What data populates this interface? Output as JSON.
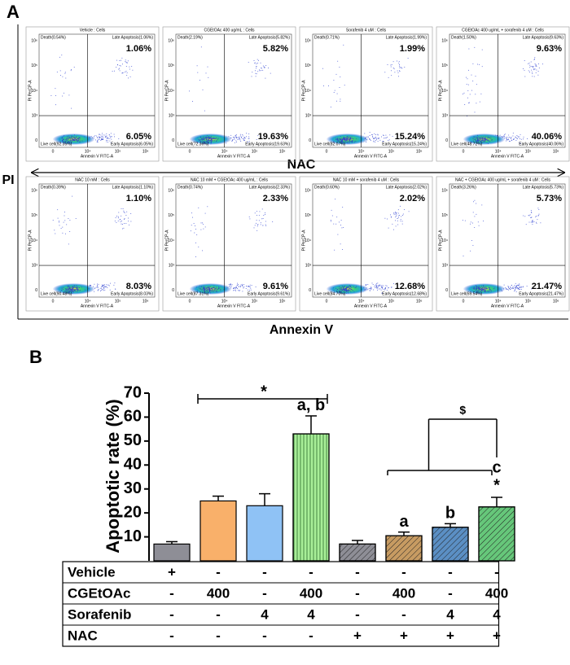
{
  "panel_a": {
    "label": "A",
    "y_axis": "PI",
    "x_axis": "Annexin V",
    "divider": "NAC",
    "plot_x_axis": "Annexin V FITC-A",
    "plot_y_axis": "PI PerCP-A",
    "plot_xticks": [
      "0",
      "10⁴",
      "10⁵",
      "10⁶"
    ],
    "plot_yticks": [
      "0",
      "10³",
      "10⁴",
      "10⁵",
      "10⁶"
    ],
    "plots": [
      {
        "title": "Vehicle : Cells",
        "death": "Death(0.54%)",
        "late": "Late Apoptosis(1.06%)",
        "live": "Live cell(92.35%)",
        "early": "Early Apoptosis(6.05%)",
        "late_value": "1.06%",
        "early_value": "6.05%"
      },
      {
        "title": "CGEtOAc 400 ug/mL : Cells",
        "death": "Death(2.19%)",
        "late": "Late Apoptosis(5.82%)",
        "live": "Live cell(72.36%)",
        "early": "Early Apoptosis(19.63%)",
        "late_value": "5.82%",
        "early_value": "19.63%"
      },
      {
        "title": "Sorafenib 4 uM : Cells",
        "death": "Death(0.71%)",
        "late": "Late Apoptosis(1.99%)",
        "live": "Live cell(82.07%)",
        "early": "Early Apoptosis(15.24%)",
        "late_value": "1.99%",
        "early_value": "15.24%"
      },
      {
        "title": "CGEtOAc 400 ug/mL + sorafenib 4 uM : Cells",
        "death": "Death(1.50%)",
        "late": "Late Apoptosis(9.63%)",
        "live": "Live cell(48.72%)",
        "early": "Early Apoptosis(40.06%)",
        "late_value": "9.63%",
        "early_value": "40.06%"
      },
      {
        "title": "NAC 10 mM : Cells",
        "death": "Death(0.39%)",
        "late": "Late Apoptosis(1.10%)",
        "live": "Live cell(90.48%)",
        "early": "Early Apoptosis(8.03%)",
        "late_value": "1.10%",
        "early_value": "8.03%"
      },
      {
        "title": "NAC 10 mM + CGEtOAc 400 ug/mL : Cells",
        "death": "Death(0.74%)",
        "late": "Late Apoptosis(2.33%)",
        "live": "Live cell(87.31%)",
        "early": "Early Apoptosis(9.61%)",
        "late_value": "2.33%",
        "early_value": "9.61%"
      },
      {
        "title": "NAC 10 mM + sorafenib 4 uM : Cells",
        "death": "Death(0.60%)",
        "late": "Late Apoptosis(2.02%)",
        "live": "Live cell(84.70%)",
        "early": "Early Apoptosis(12.68%)",
        "late_value": "2.02%",
        "early_value": "12.68%"
      },
      {
        "title": "NAC + CGEtOAc 400 ug/mL + sorafenib 4 uM : Cells",
        "death": "Death(3.26%)",
        "late": "Late Apoptosis(5.73%)",
        "live": "Live cell(69.54%)",
        "early": "Early Apoptosis(21.47%)",
        "late_value": "5.73%",
        "early_value": "21.47%"
      }
    ]
  },
  "chart_data": {
    "type": "bar",
    "label": "B",
    "y_label": "Apoptotic rate (%)",
    "values": [
      7,
      25,
      23,
      53,
      7,
      10.5,
      14,
      22.5
    ],
    "errors": [
      1,
      2,
      5,
      7.5,
      1.5,
      1.5,
      1.5,
      4
    ],
    "colors": [
      "#8e8e96",
      "#f9b06a",
      "#8fc2f5",
      "#a8ee98",
      "#8e8e96",
      "#c79b62",
      "#5b8fc4",
      "#66c77a"
    ],
    "patterns": [
      null,
      null,
      null,
      "vertical",
      "diagonal",
      "diagonal",
      "diagonal",
      "diagonal"
    ],
    "ylim": [
      0,
      70
    ],
    "yticks": [
      10,
      20,
      30,
      40,
      50,
      60,
      70
    ],
    "annotations": [
      "*",
      "a, b",
      "$",
      "a",
      "b",
      "c",
      "*"
    ],
    "table": [
      {
        "label": "Vehicle",
        "cells": [
          "+",
          "-",
          "-",
          "-",
          "-",
          "-",
          "-",
          "-"
        ]
      },
      {
        "label": "CGEtOAc",
        "cells": [
          "-",
          "400",
          "-",
          "400",
          "-",
          "400",
          "-",
          "400"
        ]
      },
      {
        "label": "Sorafenib",
        "cells": [
          "-",
          "-",
          "4",
          "4",
          "-",
          "-",
          "4",
          "4"
        ]
      },
      {
        "label": "NAC",
        "cells": [
          "-",
          "-",
          "-",
          "-",
          "+",
          "+",
          "+",
          "+"
        ]
      }
    ]
  }
}
